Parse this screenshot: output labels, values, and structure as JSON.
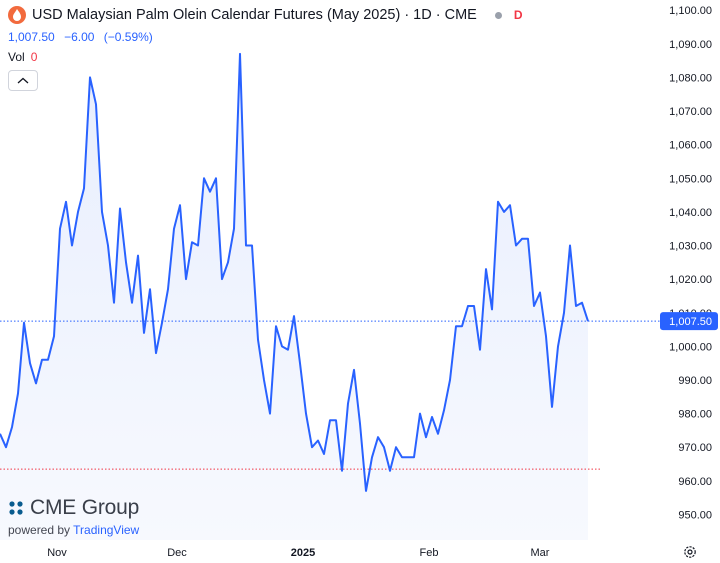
{
  "header": {
    "title": "USD Malaysian Palm Olein Calendar Futures (May 2025) · 1D · CME",
    "flag": "D",
    "price": "1,007.50",
    "change": "−6.00",
    "change_pct": "(−0.59%)",
    "vol_label": "Vol",
    "vol_value": "0"
  },
  "brand": {
    "name": "CME Group",
    "powered_by": "powered by",
    "platform": "TradingView"
  },
  "colors": {
    "line": "#2962ff",
    "area": "#e8eefd",
    "price_tag": "#2962ff",
    "down": "#f23645",
    "low_line": "#f23645"
  },
  "chart_data": {
    "type": "area",
    "y_ticks": [
      950,
      960,
      970,
      980,
      990,
      1000,
      1010,
      1020,
      1030,
      1040,
      1050,
      1060,
      1070,
      1080,
      1090,
      1100
    ],
    "y_tick_labels": [
      "950.00",
      "960.00",
      "970.00",
      "980.00",
      "990.00",
      "1,000.00",
      "1,010.00",
      "1,020.00",
      "1,030.00",
      "1,040.00",
      "1,050.00",
      "1,060.00",
      "1,070.00",
      "1,080.00",
      "1,090.00",
      "1,100.00"
    ],
    "ylim": [
      943.5,
      1103
    ],
    "xlim": [
      0,
      98
    ],
    "x_ticks": [
      {
        "label": "Nov",
        "i": 9.5
      },
      {
        "label": "Dec",
        "i": 29.5
      },
      {
        "label": "2025",
        "i": 50.5
      },
      {
        "label": "Feb",
        "i": 71.5
      },
      {
        "label": "Mar",
        "i": 90
      }
    ],
    "last_price": 1007.5,
    "last_price_label": "1,007.50",
    "low_line": 963.5,
    "values": [
      974,
      970,
      976,
      986,
      1007,
      995,
      989,
      996,
      996,
      1003,
      1035,
      1043,
      1030,
      1040,
      1047,
      1080,
      1072,
      1040,
      1030,
      1013,
      1041,
      1025,
      1013,
      1027,
      1004,
      1017,
      998,
      1007,
      1017,
      1035,
      1042,
      1020,
      1031,
      1030,
      1050,
      1046,
      1050,
      1020,
      1025,
      1035,
      1087,
      1030,
      1030,
      1002,
      990,
      980,
      1006,
      1000,
      999,
      1009,
      995,
      980,
      970,
      972,
      968,
      978,
      978,
      963,
      983,
      993,
      977,
      957,
      967,
      973,
      970,
      963,
      970,
      967,
      967,
      967,
      980,
      973,
      979,
      974,
      981,
      990,
      1006,
      1006,
      1012,
      1012,
      999,
      1023,
      1011,
      1043,
      1040,
      1042,
      1030,
      1032,
      1032,
      1012,
      1016,
      1003,
      982,
      1000,
      1010,
      1030,
      1012,
      1013,
      1007.5
    ]
  }
}
